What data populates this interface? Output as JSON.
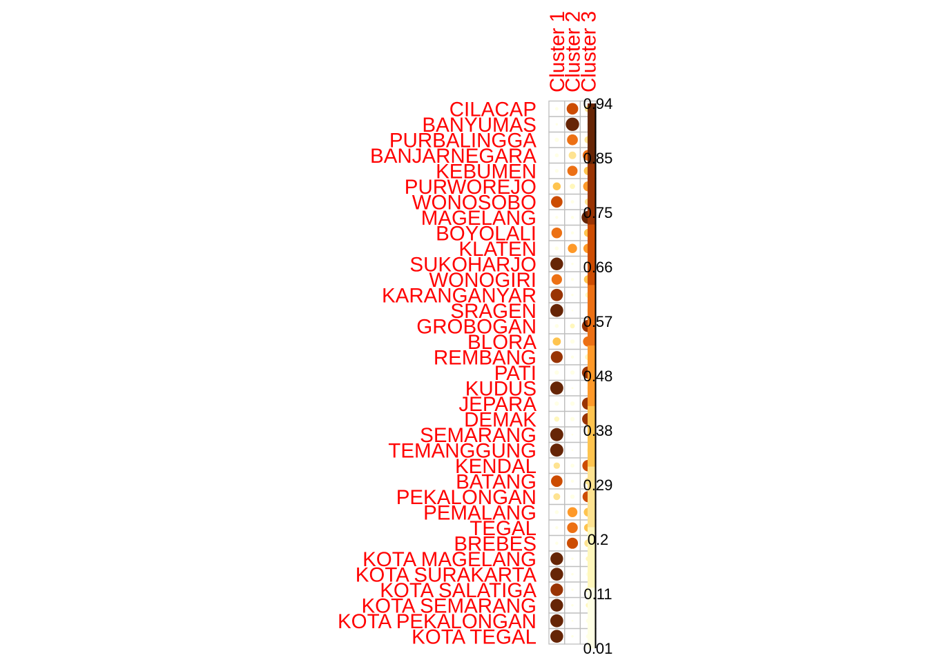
{
  "chart_data": {
    "type": "heatmap",
    "rows": [
      "CILACAP",
      "BANYUMAS",
      "PURBALINGGA",
      "BANJARNEGARA",
      "KEBUMEN",
      "PURWOREJO",
      "WONOSOBO",
      "MAGELANG",
      "BOYOLALI",
      "KLATEN",
      "SUKOHARJO",
      "WONOGIRI",
      "KARANGANYAR",
      "SRAGEN",
      "GROBOGAN",
      "BLORA",
      "REMBANG",
      "PATI",
      "KUDUS",
      "JEPARA",
      "DEMAK",
      "SEMARANG",
      "TEMANGGUNG",
      "KENDAL",
      "BATANG",
      "PEKALONGAN",
      "PEMALANG",
      "TEGAL",
      "BREBES",
      "KOTA MAGELANG",
      "KOTA SURAKARTA",
      "KOTA SALATIGA",
      "KOTA SEMARANG",
      "KOTA PEKALONGAN",
      "KOTA TEGAL"
    ],
    "columns": [
      "Cluster 1",
      "Cluster 2",
      "Cluster 3"
    ],
    "values": [
      [
        0.06,
        0.7,
        0.24
      ],
      [
        0.03,
        0.94,
        0.03
      ],
      [
        0.1,
        0.62,
        0.28
      ],
      [
        0.08,
        0.3,
        0.62
      ],
      [
        0.07,
        0.55,
        0.38
      ],
      [
        0.33,
        0.15,
        0.52
      ],
      [
        0.7,
        0.06,
        0.24
      ],
      [
        0.05,
        0.05,
        0.9
      ],
      [
        0.6,
        0.05,
        0.35
      ],
      [
        0.08,
        0.45,
        0.47
      ],
      [
        0.86,
        0.03,
        0.11
      ],
      [
        0.58,
        0.05,
        0.37
      ],
      [
        0.8,
        0.03,
        0.17
      ],
      [
        0.88,
        0.02,
        0.1
      ],
      [
        0.08,
        0.12,
        0.8
      ],
      [
        0.35,
        0.1,
        0.55
      ],
      [
        0.75,
        0.05,
        0.2
      ],
      [
        0.1,
        0.1,
        0.8
      ],
      [
        0.9,
        0.02,
        0.08
      ],
      [
        0.1,
        0.1,
        0.8
      ],
      [
        0.14,
        0.1,
        0.76
      ],
      [
        0.9,
        0.02,
        0.08
      ],
      [
        0.91,
        0.02,
        0.07
      ],
      [
        0.22,
        0.08,
        0.7
      ],
      [
        0.7,
        0.05,
        0.25
      ],
      [
        0.25,
        0.1,
        0.65
      ],
      [
        0.08,
        0.52,
        0.4
      ],
      [
        0.05,
        0.6,
        0.35
      ],
      [
        0.05,
        0.65,
        0.3
      ],
      [
        0.85,
        0.03,
        0.12
      ],
      [
        0.87,
        0.03,
        0.1
      ],
      [
        0.83,
        0.03,
        0.14
      ],
      [
        0.85,
        0.03,
        0.12
      ],
      [
        0.88,
        0.02,
        0.1
      ],
      [
        0.87,
        0.03,
        0.1
      ]
    ],
    "legend": {
      "ticks": [
        "0.94",
        "0.85",
        "0.75",
        "0.66",
        "0.57",
        "0.48",
        "0.38",
        "0.29",
        "0.2",
        "0.11",
        "0.01"
      ],
      "min": 0.01,
      "max": 0.94
    },
    "colors": [
      "#FFFFE5",
      "#FFF7BC",
      "#FEE391",
      "#FEC44F",
      "#FE9929",
      "#EC7014",
      "#CC4C02",
      "#993404",
      "#662506"
    ],
    "grid": true,
    "legend_position": "right"
  }
}
